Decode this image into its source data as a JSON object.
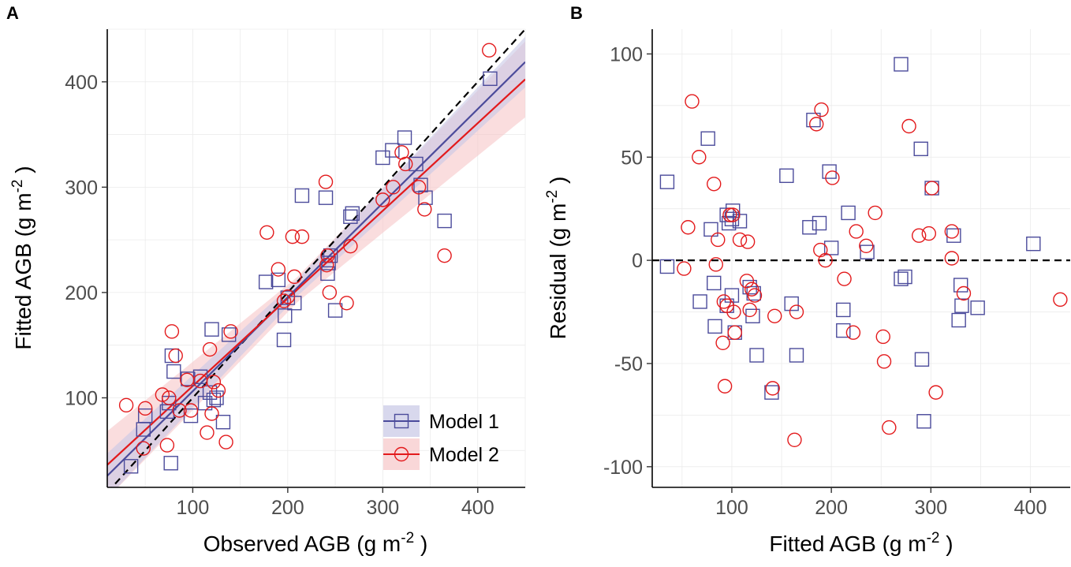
{
  "colors": {
    "model1": "#4B4B9B",
    "model2": "#E31A1C",
    "model1_band": "#C8C8E6",
    "model2_band": "#F6C6C8",
    "reference": "#000000"
  },
  "chart_data": [
    {
      "id": "A",
      "panel_label": "A",
      "type": "scatter",
      "xlabel_main": "Observed AGB (g m",
      "xlabel_sup": "-2",
      "xlabel_end": " )",
      "ylabel_main": "Fitted AGB (g m",
      "ylabel_sup": "-2",
      "ylabel_end": " )",
      "xlim": [
        10,
        450
      ],
      "ylim": [
        15,
        450
      ],
      "xticks": [
        100,
        200,
        300,
        400
      ],
      "xtick_labels": [
        "100",
        "200",
        "300",
        "400"
      ],
      "yticks": [
        100,
        200,
        300,
        400
      ],
      "ytick_labels": [
        "100",
        "200",
        "300",
        "400"
      ],
      "grid": true,
      "reference_line": {
        "style": "dashed",
        "slope": 1,
        "intercept": 0
      },
      "fit_lines": [
        {
          "series": "Model 1",
          "intercept": 17,
          "slope": 0.893,
          "band": 8
        },
        {
          "series": "Model 2",
          "intercept": 28,
          "slope": 0.832,
          "band": 12
        }
      ],
      "legend": {
        "position": "bottom-right",
        "entries": [
          {
            "label": "Model 1",
            "series": "Model 1",
            "marker": "square"
          },
          {
            "label": "Model 2",
            "series": "Model 2",
            "marker": "circle"
          }
        ]
      },
      "series": [
        {
          "name": "Model 1",
          "marker": "square",
          "points": [
            [
              35,
              35
            ],
            [
              48,
              70
            ],
            [
              50,
              83
            ],
            [
              73,
              87
            ],
            [
              75,
              95
            ],
            [
              77,
              38
            ],
            [
              78,
              140
            ],
            [
              80,
              125
            ],
            [
              95,
              118
            ],
            [
              98,
              83
            ],
            [
              108,
              120
            ],
            [
              113,
              95
            ],
            [
              118,
              105
            ],
            [
              120,
              165
            ],
            [
              122,
              98
            ],
            [
              125,
              100
            ],
            [
              132,
              77
            ],
            [
              138,
              160
            ],
            [
              177,
              210
            ],
            [
              190,
              212
            ],
            [
              196,
              155
            ],
            [
              197,
              178
            ],
            [
              200,
              195
            ],
            [
              207,
              190
            ],
            [
              215,
              292
            ],
            [
              240,
              290
            ],
            [
              242,
              218
            ],
            [
              243,
              228
            ],
            [
              245,
              235
            ],
            [
              250,
              183
            ],
            [
              266,
              272
            ],
            [
              268,
              275
            ],
            [
              300,
              328
            ],
            [
              310,
              335
            ],
            [
              323,
              347
            ],
            [
              335,
              322
            ],
            [
              340,
              302
            ],
            [
              345,
              290
            ],
            [
              365,
              268
            ],
            [
              413,
              403
            ]
          ]
        },
        {
          "name": "Model 2",
          "marker": "circle",
          "points": [
            [
              30,
              93
            ],
            [
              48,
              52
            ],
            [
              50,
              90
            ],
            [
              68,
              103
            ],
            [
              73,
              55
            ],
            [
              75,
              100
            ],
            [
              78,
              163
            ],
            [
              82,
              140
            ],
            [
              86,
              88
            ],
            [
              94,
              117
            ],
            [
              98,
              88
            ],
            [
              108,
              116
            ],
            [
              115,
              67
            ],
            [
              118,
              146
            ],
            [
              120,
              85
            ],
            [
              122,
              115
            ],
            [
              127,
              107
            ],
            [
              135,
              58
            ],
            [
              140,
              163
            ],
            [
              178,
              257
            ],
            [
              190,
              222
            ],
            [
              196,
              192
            ],
            [
              200,
              196
            ],
            [
              205,
              253
            ],
            [
              207,
              215
            ],
            [
              215,
              253
            ],
            [
              240,
              305
            ],
            [
              241,
              226
            ],
            [
              242,
              235
            ],
            [
              244,
              200
            ],
            [
              262,
              190
            ],
            [
              266,
              244
            ],
            [
              300,
              288
            ],
            [
              311,
              300
            ],
            [
              320,
              333
            ],
            [
              324,
              322
            ],
            [
              338,
              300
            ],
            [
              344,
              279
            ],
            [
              365,
              235
            ],
            [
              412,
              430
            ]
          ]
        }
      ]
    },
    {
      "id": "B",
      "panel_label": "B",
      "type": "scatter",
      "xlabel_main": "Fitted AGB (g m",
      "xlabel_sup": "-2",
      "xlabel_end": " )",
      "ylabel_main": "Residual (g m",
      "ylabel_sup": "-2",
      "ylabel_end": " )",
      "xlim": [
        20,
        440
      ],
      "ylim": [
        -110,
        112
      ],
      "xticks": [
        100,
        200,
        300,
        400
      ],
      "xtick_labels": [
        "100",
        "200",
        "300",
        "400"
      ],
      "yticks": [
        -100,
        -50,
        0,
        50,
        100
      ],
      "ytick_labels": [
        "-100",
        "-50",
        "0",
        "50",
        "100"
      ],
      "grid": true,
      "reference_line": {
        "style": "dashed",
        "horizontal": 0
      },
      "series": [
        {
          "name": "Model 1",
          "marker": "square",
          "points": [
            [
              35,
              38
            ],
            [
              35,
              -3
            ],
            [
              68,
              -20
            ],
            [
              76,
              59
            ],
            [
              79,
              15
            ],
            [
              82,
              -11
            ],
            [
              83,
              -32
            ],
            [
              95,
              22
            ],
            [
              95,
              -22
            ],
            [
              97,
              18
            ],
            [
              100,
              20
            ],
            [
              100,
              -17
            ],
            [
              101,
              24
            ],
            [
              103,
              -35
            ],
            [
              108,
              19
            ],
            [
              118,
              -13
            ],
            [
              121,
              -27
            ],
            [
              122,
              -16
            ],
            [
              125,
              -46
            ],
            [
              140,
              -64
            ],
            [
              155,
              41
            ],
            [
              160,
              -21
            ],
            [
              165,
              -46
            ],
            [
              178,
              16
            ],
            [
              182,
              68
            ],
            [
              188,
              18
            ],
            [
              198,
              43
            ],
            [
              200,
              6
            ],
            [
              212,
              -24
            ],
            [
              212,
              -34
            ],
            [
              217,
              23
            ],
            [
              236,
              4
            ],
            [
              270,
              95
            ],
            [
              270,
              -9
            ],
            [
              274,
              -8
            ],
            [
              290,
              54
            ],
            [
              291,
              -48
            ],
            [
              293,
              -78
            ],
            [
              301,
              35
            ],
            [
              323,
              12
            ],
            [
              328,
              -29
            ],
            [
              330,
              -12
            ],
            [
              331,
              -22
            ],
            [
              347,
              -23
            ],
            [
              403,
              8
            ]
          ]
        },
        {
          "name": "Model 2",
          "marker": "circle",
          "points": [
            [
              52,
              -4
            ],
            [
              56,
              16
            ],
            [
              60,
              77
            ],
            [
              67,
              50
            ],
            [
              82,
              37
            ],
            [
              84,
              -2
            ],
            [
              86,
              10
            ],
            [
              91,
              -40
            ],
            [
              92,
              -20
            ],
            [
              93,
              -61
            ],
            [
              95,
              -22
            ],
            [
              98,
              22
            ],
            [
              101,
              22
            ],
            [
              102,
              -25
            ],
            [
              103,
              -35
            ],
            [
              108,
              10
            ],
            [
              115,
              -10
            ],
            [
              116,
              9
            ],
            [
              118,
              -24
            ],
            [
              120,
              -14
            ],
            [
              123,
              -17
            ],
            [
              141,
              -62
            ],
            [
              143,
              -27
            ],
            [
              163,
              -87
            ],
            [
              165,
              -25
            ],
            [
              185,
              66
            ],
            [
              189,
              5
            ],
            [
              190,
              73
            ],
            [
              194,
              0
            ],
            [
              201,
              40
            ],
            [
              213,
              -9
            ],
            [
              222,
              -35
            ],
            [
              225,
              14
            ],
            [
              235,
              7
            ],
            [
              244,
              23
            ],
            [
              252,
              -37
            ],
            [
              253,
              -49
            ],
            [
              258,
              -81
            ],
            [
              278,
              65
            ],
            [
              288,
              12
            ],
            [
              298,
              13
            ],
            [
              301,
              35
            ],
            [
              305,
              -64
            ],
            [
              321,
              1
            ],
            [
              321,
              14
            ],
            [
              333,
              -16
            ],
            [
              430,
              -19
            ]
          ]
        }
      ]
    }
  ]
}
